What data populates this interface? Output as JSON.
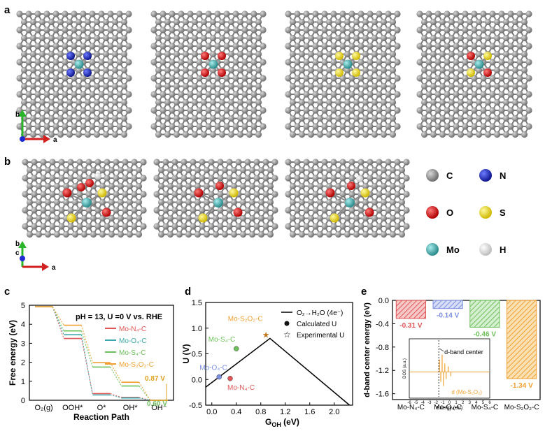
{
  "panel_labels": {
    "a": "a",
    "b": "b",
    "c": "c",
    "d": "d",
    "e": "e"
  },
  "axes_a": {
    "b": "b",
    "a": "a"
  },
  "axes_b": {
    "b": "b",
    "c": "c",
    "a": "a"
  },
  "legend_atoms": [
    {
      "sym": "C",
      "color": "#8a8a8a"
    },
    {
      "sym": "N",
      "color": "#1d2bd6"
    },
    {
      "sym": "O",
      "color": "#e01818"
    },
    {
      "sym": "S",
      "color": "#f2e21a"
    },
    {
      "sym": "Mo",
      "color": "#4bb5b5"
    },
    {
      "sym": "H",
      "color": "#f4f4f4"
    }
  ],
  "panel_a_dopants": [
    "#1d2bd6",
    "#e01818",
    "#f2e21a",
    "mixed"
  ],
  "chart_data": [
    {
      "type": "line",
      "panel": "c",
      "annotation": "pH = 13, U =0 V vs. RHE",
      "ylabel": "Free energy (eV)",
      "xlabel": "Reaction Path",
      "categories": [
        "O₂(g)",
        "OOH*",
        "O*",
        "OH*",
        "OH⁻"
      ],
      "ylim": [
        0,
        5
      ],
      "yticks": [
        "0",
        "1",
        "2",
        "3",
        "4",
        "5"
      ],
      "series": [
        {
          "name": "Mo-N₄-C",
          "color": "#e05555",
          "values": [
            4.92,
            3.25,
            0.35,
            0.15,
            0.0
          ]
        },
        {
          "name": "Mo-O₄-C",
          "color": "#3aa8a8",
          "values": [
            4.92,
            3.45,
            0.28,
            0.12,
            0.0
          ]
        },
        {
          "name": "Mo-S₄-C",
          "color": "#6cc05a",
          "values": [
            4.92,
            3.65,
            1.75,
            0.75,
            0.0
          ]
        },
        {
          "name": "Mo-S₂O₂-C",
          "color": "#f0a030",
          "values": [
            4.92,
            3.95,
            1.98,
            0.95,
            0.0
          ]
        }
      ],
      "labels": {
        "top": "0.87 V",
        "bottom": "0.60 V"
      }
    },
    {
      "type": "scatter",
      "panel": "d",
      "ylabel": "U (V)",
      "xlabel": "G",
      "xlabel_sub": "OH",
      "xlabel_unit": " (eV)",
      "xlim": [
        -0.1,
        2.3
      ],
      "ylim": [
        -0.5,
        1.5
      ],
      "xticks": [
        "0.0",
        "0.4",
        "0.8",
        "1.2",
        "1.6",
        "2.0"
      ],
      "yticks": [
        "-0.5",
        "0.0",
        "0.5",
        "1.0",
        "1.5"
      ],
      "legend": [
        "O₂→H₂O (4e⁻)",
        "Calculated U",
        "Experimental U"
      ],
      "volcano": {
        "x": [
          -0.1,
          0.95,
          2.25
        ],
        "y": [
          -0.15,
          0.8,
          -0.5
        ]
      },
      "points": [
        {
          "name": "Mo-S₂O₂-C",
          "x": 0.88,
          "y": 0.87,
          "kind": "experimental",
          "color": "#f0a030"
        },
        {
          "name": "Mo-S₄-C",
          "x": 0.4,
          "y": 0.6,
          "kind": "calculated",
          "color": "#6cc05a"
        },
        {
          "name": "Mo-O₄-C",
          "x": 0.12,
          "y": 0.05,
          "kind": "calculated",
          "color": "#7b8fe0"
        },
        {
          "name": "Mo-N₄-C",
          "x": 0.3,
          "y": 0.02,
          "kind": "calculated",
          "color": "#e05555"
        }
      ]
    },
    {
      "type": "bar",
      "panel": "e",
      "ylabel": "d-band center energy (eV)",
      "categories": [
        "Mo-N₄-C",
        "Mo-O₄-C",
        "Mo-S₄-C",
        "Mo-S₂O₂-C"
      ],
      "values": [
        -0.31,
        -0.14,
        -0.46,
        -1.34
      ],
      "value_labels": [
        "-0.31 V",
        "-0.14 V",
        "-0.46 V",
        "-1.34 V"
      ],
      "colors": [
        "#e05555",
        "#7b8fe0",
        "#6cc05a",
        "#f0a030"
      ],
      "ylim": [
        -1.7,
        0
      ],
      "yticks": [
        "0.0",
        "-0.4",
        "-0.8",
        "-1.2",
        "-1.6"
      ],
      "inset": {
        "ylabel": "DOS (a.u.)",
        "xlabel": "Energy (eV)",
        "xticks": [
          "-6",
          "-5",
          "-4",
          "-3",
          "-2",
          "-1",
          "0",
          "1",
          "2",
          "3",
          "4",
          "5",
          "6"
        ],
        "annotation": "d-band center",
        "legend": "d (Mo-S₂O₂)"
      }
    }
  ]
}
